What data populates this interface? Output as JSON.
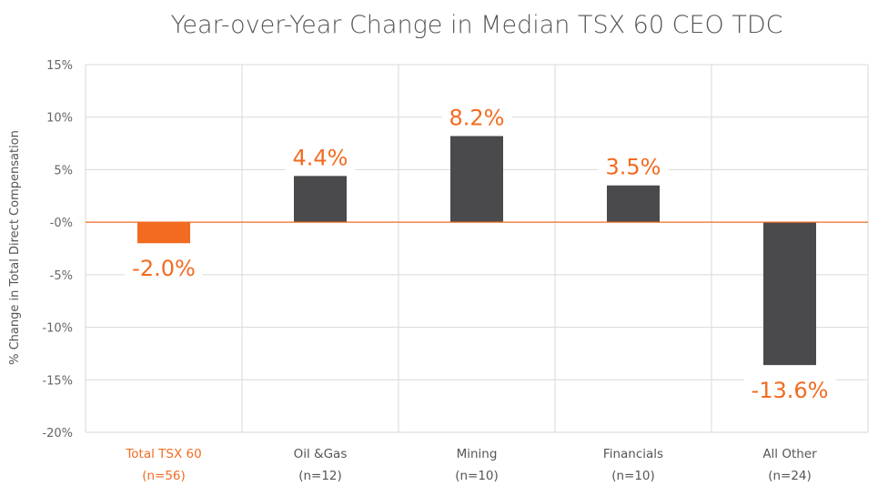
{
  "chart_data": {
    "type": "bar",
    "title": "Year-over-Year Change in Median TSX 60 CEO TDC",
    "ylabel": "% Change in Total Direct Compensation",
    "xlabel": "",
    "categories": [
      {
        "name": "Total TSX 60",
        "n": "(n=56)"
      },
      {
        "name": "Oil &Gas",
        "n": "(n=12)"
      },
      {
        "name": "Mining",
        "n": "(n=10)"
      },
      {
        "name": "Financials",
        "n": "(n=10)"
      },
      {
        "name": "All Other",
        "n": "(n=24)"
      }
    ],
    "values": [
      -2.0,
      4.4,
      8.2,
      3.5,
      -13.6
    ],
    "data_labels": [
      "-2.0%",
      "4.4%",
      "8.2%",
      "3.5%",
      "-13.6%"
    ],
    "ylim": [
      -20,
      15
    ],
    "yticks": [
      15,
      10,
      5,
      0,
      -5,
      -10,
      -15,
      -20
    ],
    "ytick_labels": [
      "15%",
      "10%",
      "5%",
      "-0%",
      "-5%",
      "-10%",
      "-15%",
      "-20%"
    ],
    "grid": true,
    "legend": "none",
    "colors": {
      "highlight_bar": "#F26B21",
      "bar": "#4A4A4C",
      "data_label": "#F26B21",
      "highlight_category": "#F26B21",
      "zero_line": "#F26B21",
      "grid": "#D9D9D9",
      "text": "#555555"
    }
  }
}
